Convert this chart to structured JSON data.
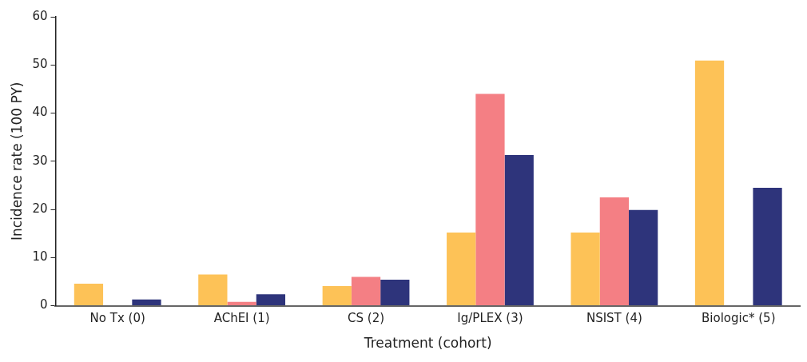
{
  "chart_data": {
    "type": "bar",
    "xlabel": "Treatment (cohort)",
    "ylabel": "Incidence rate (100 PY)",
    "categories": [
      "No Tx (0)",
      "AChEI (1)",
      "CS (2)",
      "Ig/PLEX (3)",
      "NSIST (4)",
      "Biologic* (5)"
    ],
    "series": [
      {
        "color": "#fdc257",
        "values": [
          4.6,
          6.5,
          4.1,
          15.2,
          15.2,
          50.9
        ]
      },
      {
        "color": "#f47f84",
        "values": [
          null,
          0.8,
          6.0,
          44.0,
          22.5,
          null
        ]
      },
      {
        "color": "#2e347b",
        "values": [
          1.3,
          2.4,
          5.4,
          31.3,
          19.9,
          24.5
        ]
      }
    ],
    "ylim": [
      0,
      60
    ],
    "yticks": [
      0,
      10,
      20,
      30,
      40,
      50,
      60
    ],
    "grid": false,
    "legend": false
  }
}
